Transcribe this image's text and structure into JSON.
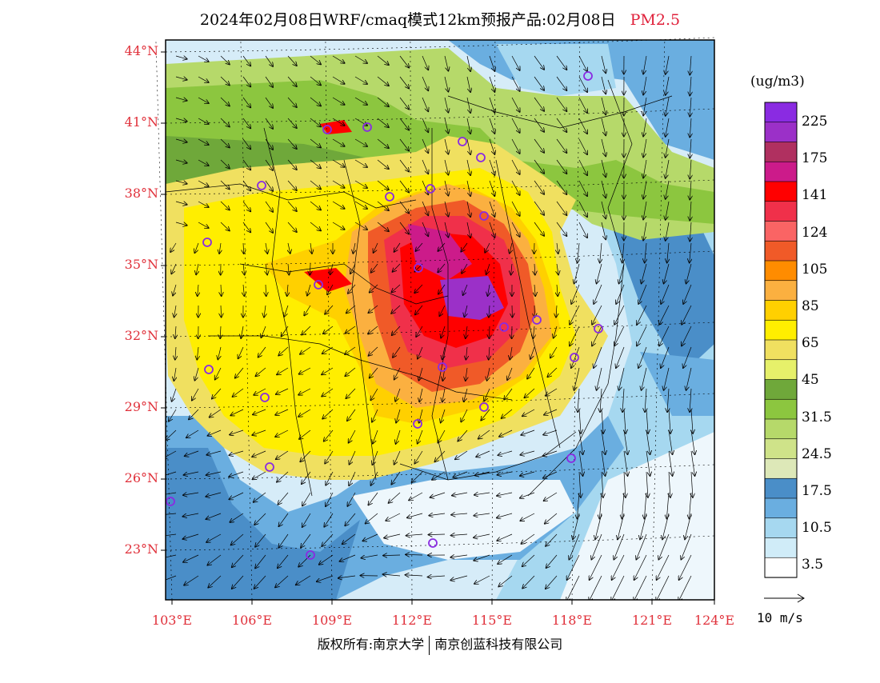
{
  "title": {
    "main": "2024年02月08日WRF/cmaq模式12km预报产品:02月08日",
    "product": "PM2.5"
  },
  "map": {
    "lat_labels": [
      "44°N",
      "41°N",
      "38°N",
      "35°N",
      "32°N",
      "29°N",
      "26°N",
      "23°N"
    ],
    "lon_labels": [
      "103°E",
      "106°E",
      "109°E",
      "112°E",
      "115°E",
      "118°E",
      "121°E",
      "124°E"
    ],
    "lon_range": [
      103,
      124
    ],
    "lat_range": [
      21,
      44.5
    ]
  },
  "legend": {
    "unit": "(ug/m3)",
    "labels": [
      "225",
      "175",
      "141",
      "124",
      "105",
      "85",
      "65",
      "45",
      "31.5",
      "24.5",
      "17.5",
      "10.5",
      "3.5"
    ],
    "colors": [
      "#8a2be2",
      "#9b30c8",
      "#b03060",
      "#cc1b8a",
      "#ff0000",
      "#f0304a",
      "#fa6464",
      "#f05a28",
      "#ff8c00",
      "#fbb040",
      "#ffd000",
      "#ffee00",
      "#f0e060",
      "#e6f06a",
      "#6fa83a",
      "#8cc63f",
      "#b6d96a",
      "#cfe389",
      "#dde8b8",
      "#4a8ec8",
      "#6aaee0",
      "#a6d8f0",
      "#d0ecf8",
      "#ffffff"
    ],
    "wind_ref": "10 m/s"
  },
  "footer": {
    "left": "版权所有:南京大学",
    "right": "南京创蓝科技有限公司"
  }
}
